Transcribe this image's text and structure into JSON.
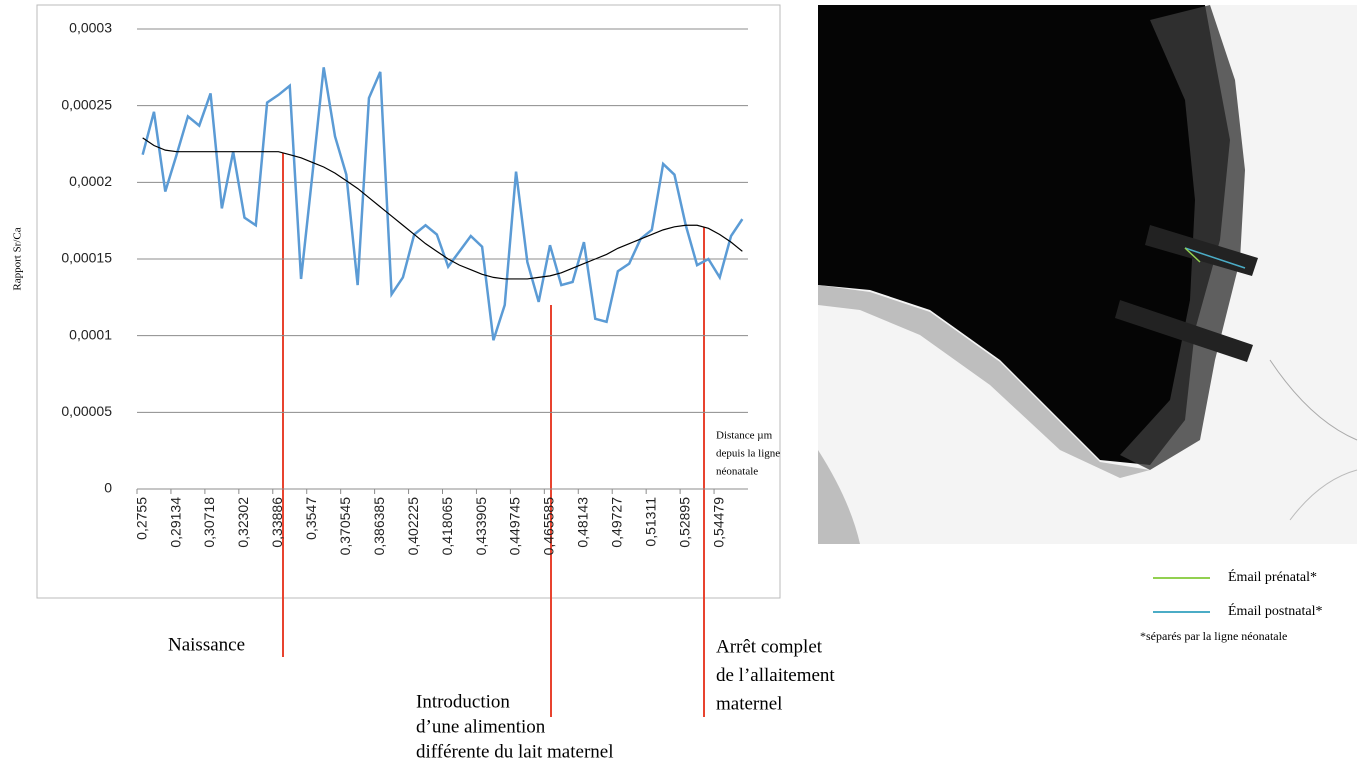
{
  "chart_data": {
    "type": "line",
    "y_label": "Rapport Sr/Ca",
    "x_label_lines": [
      "Distance µm",
      "depuis la ligne",
      "néonatale"
    ],
    "categories": [
      "0,2755",
      null,
      null,
      "0,29134",
      null,
      null,
      "0,30718",
      null,
      null,
      "0,32302",
      null,
      null,
      "0,33886",
      null,
      null,
      "0,3547",
      null,
      null,
      "0,370545",
      null,
      null,
      "0,386385",
      null,
      null,
      "0,402225",
      null,
      null,
      "0,418065",
      null,
      null,
      "0,433905",
      null,
      null,
      "0,449745",
      null,
      null,
      "0,465585",
      null,
      null,
      "0,48143",
      null,
      null,
      "0,49727",
      null,
      null,
      "0,51311",
      null,
      null,
      "0,52895",
      null,
      null,
      "0,54479",
      null,
      null
    ],
    "series": [
      {
        "color": "#5b9bd5",
        "values": [
          0.000218,
          0.000246,
          0.000194,
          0.000218,
          0.000243,
          0.000237,
          0.000258,
          0.000183,
          0.00022,
          0.000177,
          0.000172,
          0.000252,
          0.000257,
          0.000263,
          0.000137,
          0.000205,
          0.000275,
          0.00023,
          0.000205,
          0.000133,
          0.000255,
          0.000272,
          0.000127,
          0.000138,
          0.000166,
          0.000172,
          0.000166,
          0.000145,
          0.000155,
          0.000165,
          0.000158,
          9.7e-05,
          0.00012,
          0.000207,
          0.000148,
          0.000122,
          0.000159,
          0.000133,
          0.000135,
          0.000161,
          0.000111,
          0.000109,
          0.000142,
          0.000147,
          0.000163,
          0.000169,
          0.000212,
          0.000205,
          0.000172,
          0.000146,
          0.00015,
          0.000138,
          0.000165,
          0.000176
        ]
      },
      {
        "color": "#000000",
        "values": [
          0.000229,
          0.000224,
          0.000221,
          0.00022,
          0.00022,
          0.00022,
          0.00022,
          0.00022,
          0.00022,
          0.00022,
          0.00022,
          0.00022,
          0.00022,
          0.000218,
          0.000216,
          0.000213,
          0.00021,
          0.000206,
          0.000201,
          0.000196,
          0.00019,
          0.000184,
          0.000178,
          0.000172,
          0.000166,
          0.00016,
          0.000155,
          0.00015,
          0.000146,
          0.000143,
          0.00014,
          0.000138,
          0.000137,
          0.000137,
          0.000137,
          0.000138,
          0.000139,
          0.000141,
          0.000144,
          0.000147,
          0.00015,
          0.000153,
          0.000157,
          0.00016,
          0.000163,
          0.000166,
          0.000169,
          0.000171,
          0.000172,
          0.000172,
          0.00017,
          0.000166,
          0.000161,
          0.000155
        ]
      }
    ],
    "ylim": [
      0,
      0.0003
    ],
    "yticks": [
      0,
      {
        "value": 5e-05,
        "label": "0,00005"
      },
      {
        "value": 0.0001,
        "label": "0,0001"
      },
      {
        "value": 0.00015,
        "label": "0,00015"
      },
      {
        "value": 0.0002,
        "label": "0,0002"
      },
      {
        "value": 0.00025,
        "label": "0,00025"
      },
      {
        "value": 0.0003,
        "label": "0,0003"
      }
    ],
    "grid": true,
    "annotations": [
      {
        "lines": [
          "Naissance"
        ]
      },
      {
        "lines": [
          "Introduction",
          "d’une alimention",
          "différente du lait maternel"
        ]
      },
      {
        "lines": [
          "Arrêt complet",
          "de l’allaitement",
          "maternel"
        ]
      }
    ]
  },
  "image_legend": {
    "items": [
      {
        "label": "Émail prénatal*",
        "color": "#92d050"
      },
      {
        "label": "Émail postnatal*",
        "color": "#4bacc6"
      }
    ],
    "note": "*séparés par la ligne néonatale"
  }
}
